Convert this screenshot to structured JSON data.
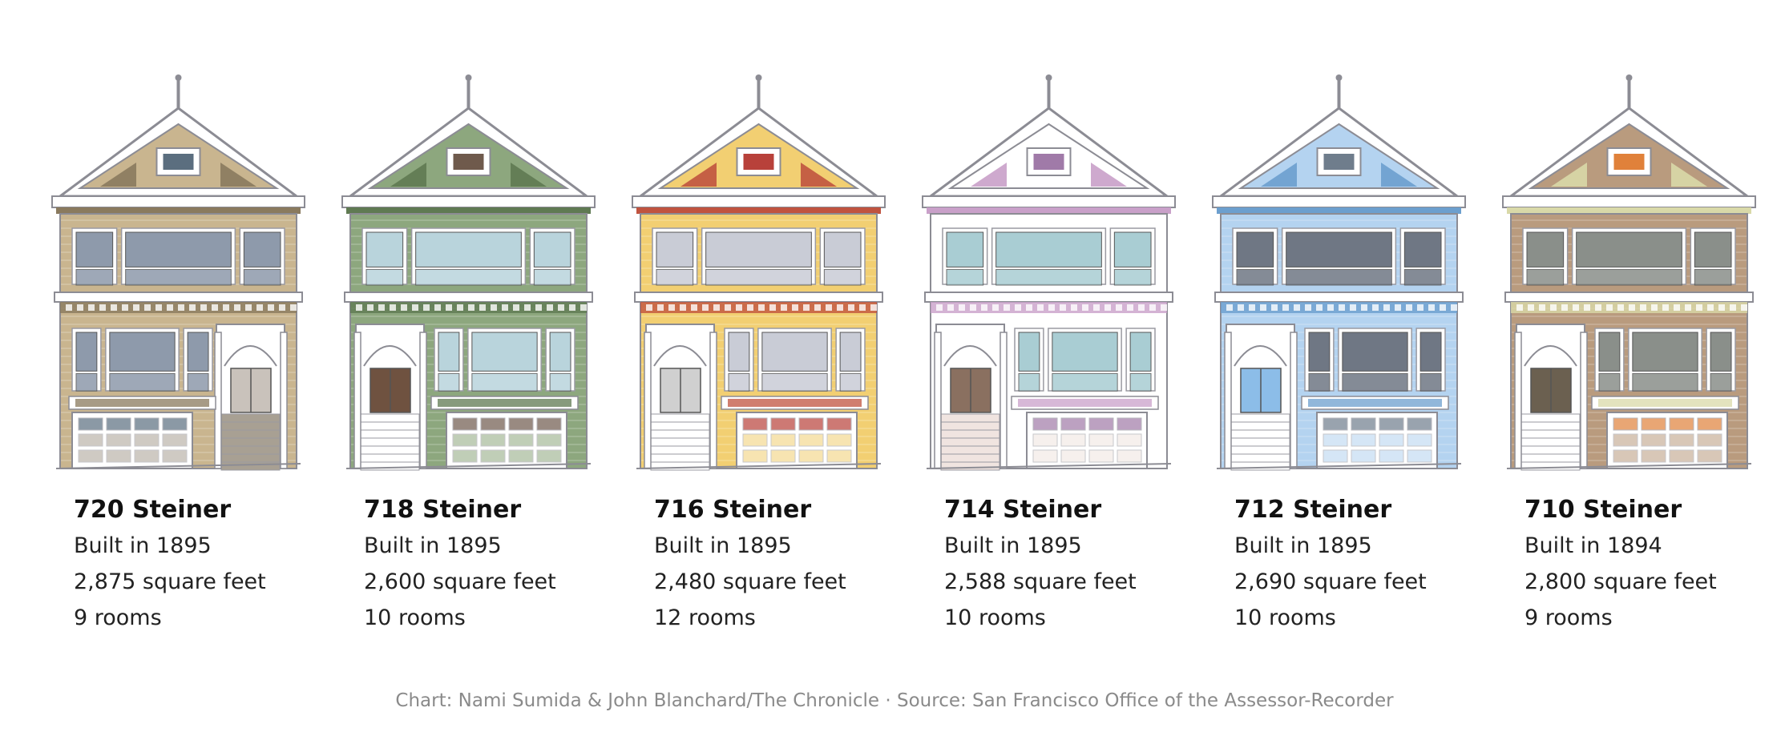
{
  "houses": [
    {
      "address": "720 Steiner",
      "built": "Built in 1895",
      "size": "2,875 square feet",
      "rooms": "9 rooms",
      "colors": {
        "body": "#c9b58f",
        "trim": "#8a7a5e",
        "accent": "#5b6e7f",
        "window": "#8e9aab",
        "door": "#c9c2bb",
        "stairs": "#a8a093"
      }
    },
    {
      "address": "718 Steiner",
      "built": "Built in 1895",
      "size": "2,600 square feet",
      "rooms": "10 rooms",
      "colors": {
        "body": "#8da77e",
        "trim": "#5f7a52",
        "accent": "#6f5a4c",
        "window": "#b9d4dc",
        "door": "#6f5240",
        "stairs": "#ffffff"
      }
    },
    {
      "address": "716 Steiner",
      "built": "Built in 1895",
      "size": "2,480 square feet",
      "rooms": "12 rooms",
      "colors": {
        "body": "#f2cf72",
        "trim": "#c0533f",
        "accent": "#b8413a",
        "window": "#c9ccd6",
        "door": "#d0d0d0",
        "stairs": "#ffffff"
      }
    },
    {
      "address": "714 Steiner",
      "built": "Built in 1895",
      "size": "2,588 square feet",
      "rooms": "10 rooms",
      "colors": {
        "body": "#ffffff",
        "trim": "#c9a0c9",
        "accent": "#a07aa8",
        "window": "#a9cdd3",
        "door": "#8a7060",
        "stairs": "#f0e4e0"
      }
    },
    {
      "address": "712 Steiner",
      "built": "Built in 1895",
      "size": "2,690 square feet",
      "rooms": "10 rooms",
      "colors": {
        "body": "#b4d3f0",
        "trim": "#6c9fce",
        "accent": "#6f7d8c",
        "window": "#6f7784",
        "door": "#8cbde8",
        "stairs": "#ffffff"
      }
    },
    {
      "address": "710 Steiner",
      "built": "Built in 1894",
      "size": "2,800 square feet",
      "rooms": "9 rooms",
      "colors": {
        "body": "#b99b7e",
        "trim": "#d9d9a8",
        "accent": "#e0813a",
        "window": "#8a8f8a",
        "door": "#6b6050",
        "stairs": "#ffffff"
      }
    }
  ],
  "credit": "Chart: Nami Sumida & John Blanchard/The Chronicle · Source: San Francisco Office of the Assessor-Recorder"
}
